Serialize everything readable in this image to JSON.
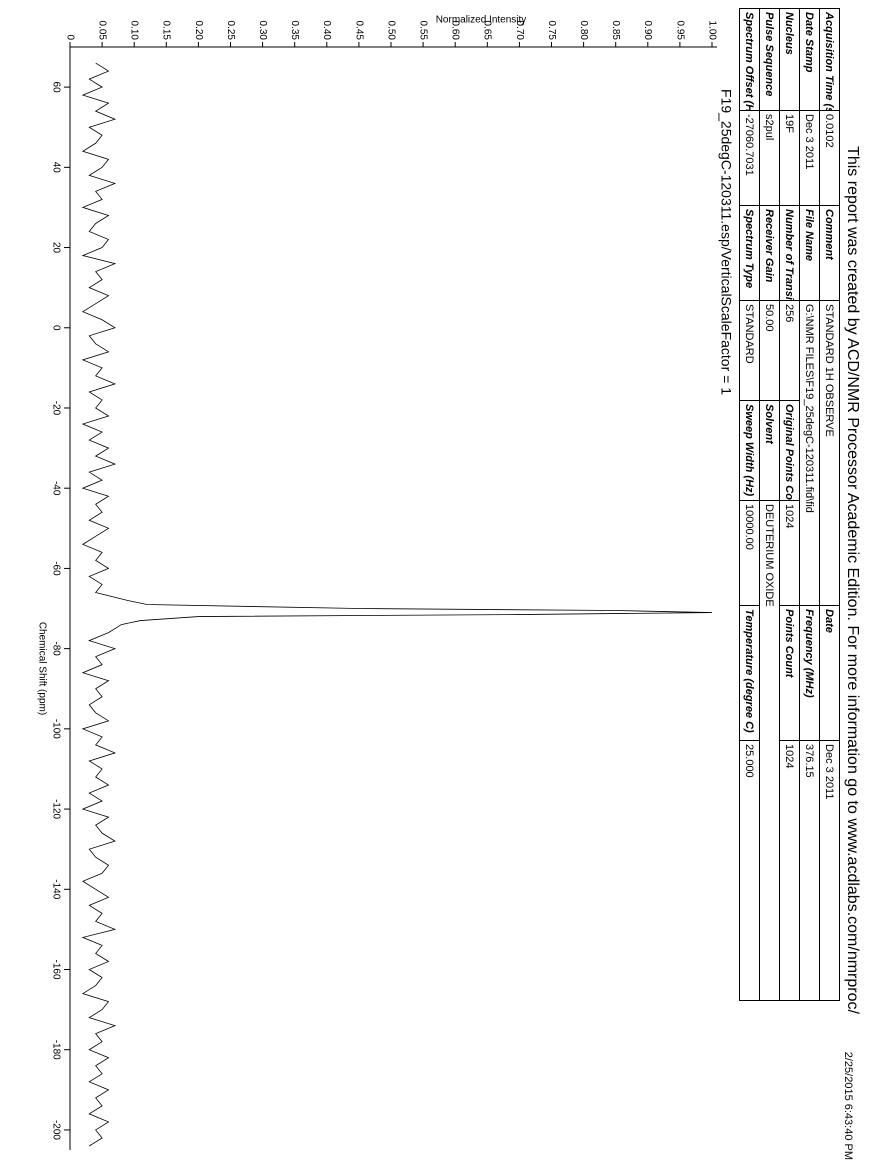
{
  "header": {
    "title": "This report was created by ACD/NMR Processor Academic Edition. For more information go to www.acdlabs.com/nmrproc/",
    "timestamp": "2/25/2015 6:43:40 PM"
  },
  "table": {
    "rows": [
      [
        "Acquisition Time (sec)",
        "0.0102",
        "Comment",
        "STANDARD 1H OBSERVE",
        "Date",
        "Dec 3 2011"
      ],
      [
        "Date Stamp",
        "Dec 3 2011",
        "File Name",
        "G:\\NMR FILES\\F19_25degC-120311.fid\\fid",
        "Frequency (MHz)",
        "376.15"
      ],
      [
        "Nucleus",
        "19F",
        "Number of Transients",
        "256",
        "Original Points Count",
        "1024",
        "Points Count",
        "1024"
      ],
      [
        "Pulse Sequence",
        "s2pul",
        "Receiver Gain",
        "50.00",
        "Solvent",
        "DEUTERIUM OXIDE"
      ],
      [
        "Spectrum Offset (Hz)",
        "-27060.7031",
        "Spectrum Type",
        "STANDARD",
        "Sweep Width (Hz)",
        "10000.00",
        "Temperature (degree C)",
        "25.000"
      ]
    ]
  },
  "chart_data": {
    "type": "line",
    "color": "#000000",
    "annotation": "F19_25degC-120311.esp/VerticalScaleFactor = 1",
    "x_label": "Chemical Shift (ppm)",
    "y_label": "Normalized Intensity",
    "xlim": [
      70,
      -205
    ],
    "ylim": [
      0,
      1
    ],
    "xticks": [
      60,
      40,
      20,
      0,
      -20,
      -40,
      -60,
      -80,
      -100,
      -120,
      -140,
      -160,
      -180,
      -200
    ],
    "yticks": [
      0,
      0.05,
      {
        "value": 0.1,
        "label": "0.10"
      },
      0.15,
      {
        "value": 0.2,
        "label": "0.20"
      },
      0.25,
      {
        "value": 0.3,
        "label": "0.30"
      },
      0.35,
      {
        "value": 0.4,
        "label": "0.40"
      },
      0.45,
      {
        "value": 0.5,
        "label": "0.50"
      },
      0.55,
      {
        "value": 0.6,
        "label": "0.60"
      },
      0.65,
      {
        "value": 0.7,
        "label": "0.70"
      },
      0.75,
      {
        "value": 0.8,
        "label": "0.80"
      },
      0.85,
      {
        "value": 0.9,
        "label": "0.90"
      },
      0.95,
      {
        "value": 1,
        "label": "1.00"
      }
    ],
    "x": [
      66,
      64,
      62,
      60,
      58,
      56,
      54,
      52,
      50,
      48,
      46,
      44,
      42,
      40,
      38,
      36,
      34,
      32,
      30,
      28,
      26,
      24,
      22,
      20,
      18,
      16,
      14,
      12,
      10,
      8,
      6,
      4,
      2,
      0,
      -2,
      -4,
      -6,
      -8,
      -10,
      -12,
      -14,
      -16,
      -18,
      -20,
      -22,
      -24,
      -26,
      -28,
      -30,
      -32,
      -34,
      -36,
      -38,
      -40,
      -42,
      -44,
      -46,
      -48,
      -50,
      -52,
      -54,
      -56,
      -58,
      -60,
      -62,
      -64,
      -66,
      -68,
      -69,
      -70,
      -70.5,
      -71,
      -71.5,
      -72,
      -73,
      -74,
      -76,
      -78,
      -80,
      -82,
      -84,
      -86,
      -88,
      -90,
      -92,
      -94,
      -96,
      -98,
      -100,
      -102,
      -104,
      -106,
      -108,
      -110,
      -112,
      -114,
      -116,
      -118,
      -120,
      -122,
      -124,
      -126,
      -128,
      -130,
      -132,
      -134,
      -136,
      -138,
      -140,
      -142,
      -144,
      -146,
      -148,
      -150,
      -152,
      -154,
      -156,
      -158,
      -160,
      -162,
      -164,
      -166,
      -168,
      -170,
      -172,
      -174,
      -176,
      -178,
      -180,
      -182,
      -184,
      -186,
      -188,
      -190,
      -192,
      -194,
      -196,
      -198,
      -200,
      -202,
      -204
    ],
    "values": [
      0.04,
      0.06,
      0.03,
      0.05,
      0.02,
      0.06,
      0.04,
      0.07,
      0.03,
      0.05,
      0.04,
      0.02,
      0.06,
      0.05,
      0.03,
      0.07,
      0.04,
      0.05,
      0.02,
      0.06,
      0.04,
      0.03,
      0.06,
      0.05,
      0.02,
      0.07,
      0.04,
      0.05,
      0.03,
      0.06,
      0.04,
      0.02,
      0.05,
      0.07,
      0.03,
      0.04,
      0.06,
      0.02,
      0.05,
      0.04,
      0.07,
      0.03,
      0.05,
      0.04,
      0.06,
      0.02,
      0.05,
      0.03,
      0.06,
      0.04,
      0.07,
      0.03,
      0.05,
      0.02,
      0.06,
      0.04,
      0.05,
      0.03,
      0.06,
      0.04,
      0.02,
      0.05,
      0.04,
      0.06,
      0.03,
      0.05,
      0.04,
      0.09,
      0.12,
      0.45,
      0.85,
      1,
      0.7,
      0.2,
      0.11,
      0.08,
      0.06,
      0.03,
      0.07,
      0.04,
      0.05,
      0.02,
      0.06,
      0.04,
      0.05,
      0.03,
      0.04,
      0.06,
      0.02,
      0.05,
      0.04,
      0.07,
      0.03,
      0.05,
      0.04,
      0.06,
      0.03,
      0.05,
      0.02,
      0.06,
      0.04,
      0.05,
      0.07,
      0.03,
      0.04,
      0.06,
      0.05,
      0.02,
      0.04,
      0.06,
      0.03,
      0.05,
      0.04,
      0.07,
      0.02,
      0.05,
      0.04,
      0.06,
      0.03,
      0.05,
      0.04,
      0.02,
      0.06,
      0.05,
      0.03,
      0.07,
      0.04,
      0.05,
      0.03,
      0.06,
      0.04,
      0.05,
      0.03,
      0.06,
      0.04,
      0.05,
      0.03,
      0.06,
      0.04,
      0.05,
      0.03
    ]
  }
}
